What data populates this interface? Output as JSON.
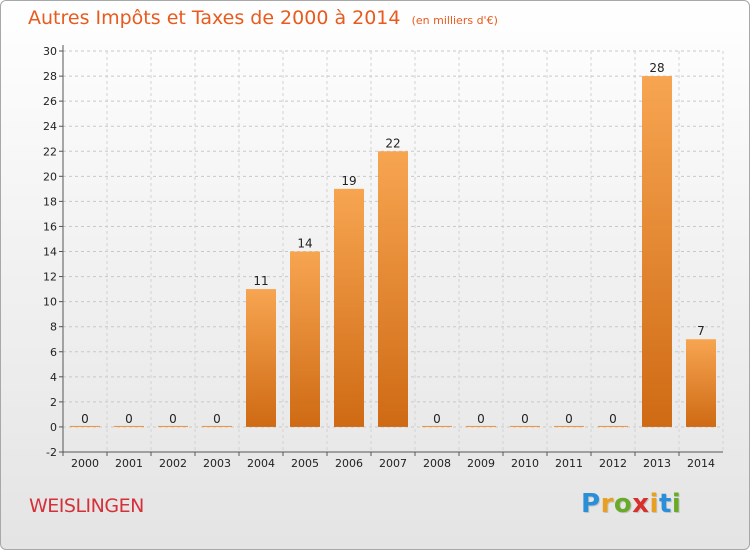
{
  "chart_data": {
    "type": "bar",
    "title": "Autres Impôts et Taxes de 2000 à 2014",
    "subtitle": "(en milliers d'€)",
    "xlabel": "",
    "ylabel": "",
    "categories": [
      "2000",
      "2001",
      "2002",
      "2003",
      "2004",
      "2005",
      "2006",
      "2007",
      "2008",
      "2009",
      "2010",
      "2011",
      "2012",
      "2013",
      "2014"
    ],
    "values": [
      0,
      0,
      0,
      0,
      11,
      14,
      19,
      22,
      0,
      0,
      0,
      0,
      0,
      28,
      7
    ],
    "ylim": [
      -2,
      30
    ],
    "yticks": [
      -2,
      0,
      2,
      4,
      6,
      8,
      10,
      12,
      14,
      16,
      18,
      20,
      22,
      24,
      26,
      28,
      30
    ],
    "grid": true,
    "bar_color": "#f0903a"
  },
  "footer": {
    "city": "WEISLINGEN",
    "brand_letters": [
      "P",
      "r",
      "o",
      "x",
      "i",
      "t",
      "i"
    ],
    "brand_colors": [
      "#2a8fd8",
      "#e8a020",
      "#6aaa2a",
      "#d8302a",
      "#e8a020",
      "#2a8fd8",
      "#6aaa2a"
    ]
  }
}
